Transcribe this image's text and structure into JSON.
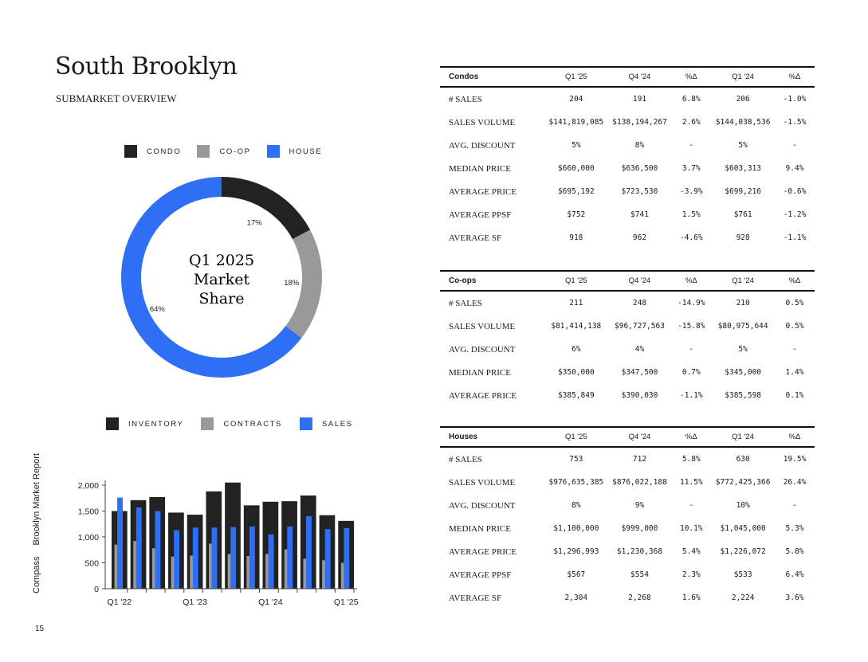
{
  "page": {
    "title": "South Brooklyn",
    "subtitle": "SUBMARKET OVERVIEW",
    "vertical_brand": "Compass",
    "vertical_report": "Brooklyn Market Report",
    "page_number": "15"
  },
  "colors": {
    "condo": "#222222",
    "coop": "#999999",
    "house": "#2f6ff5"
  },
  "donut": {
    "legend": [
      "CONDO",
      "CO-OP",
      "HOUSE"
    ],
    "center_lines": [
      "Q1 2025",
      "Market",
      "Share"
    ]
  },
  "bars": {
    "legend": [
      "INVENTORY",
      "CONTRACTS",
      "SALES"
    ]
  },
  "chart_data": [
    {
      "type": "pie",
      "variant": "donut",
      "labels": [
        "CONDO",
        "CO-OP",
        "HOUSE"
      ],
      "values": [
        17,
        18,
        64
      ],
      "value_labels": [
        "17%",
        "18%",
        "64%"
      ],
      "center_text": "Q1 2025 Market Share"
    },
    {
      "type": "bar",
      "categories": [
        "Q1 '22",
        "Q2 '22",
        "Q3 '22",
        "Q4 '22",
        "Q1 '23",
        "Q2 '23",
        "Q3 '23",
        "Q4 '23",
        "Q1 '24",
        "Q2 '24",
        "Q3 '24",
        "Q4 '24",
        "Q1 '25"
      ],
      "tick_labels": [
        "Q1 '22",
        "Q1 '23",
        "Q1 '24",
        "Q1 '25"
      ],
      "series": [
        {
          "name": "INVENTORY",
          "values": [
            1500,
            1710,
            1770,
            1470,
            1430,
            1880,
            2050,
            1610,
            1680,
            1690,
            1800,
            1420,
            1310
          ]
        },
        {
          "name": "CONTRACTS",
          "values": [
            850,
            920,
            780,
            620,
            640,
            870,
            670,
            630,
            670,
            760,
            580,
            550,
            500
          ]
        },
        {
          "name": "SALES",
          "values": [
            1760,
            1570,
            1500,
            1130,
            1180,
            1180,
            1190,
            1200,
            1050,
            1200,
            1400,
            1150,
            1170
          ]
        }
      ],
      "yticks": [
        "0",
        "500",
        "1,000",
        "1,500",
        "2,000"
      ],
      "ylim": [
        0,
        2200
      ],
      "legend_position": "top",
      "grid": false
    }
  ],
  "tables": [
    {
      "title": "Condos",
      "columns": [
        "Q1 '25",
        "Q4 '24",
        "%Δ",
        "Q1 '24",
        "%Δ"
      ],
      "rows": [
        {
          "label": "# SALES",
          "cells": [
            "204",
            "191",
            "6.8%",
            "206",
            "-1.0%"
          ]
        },
        {
          "label": "SALES VOLUME",
          "cells": [
            "$141,819,085",
            "$138,194,267",
            "2.6%",
            "$144,038,536",
            "-1.5%"
          ]
        },
        {
          "label": "AVG. DISCOUNT",
          "cells": [
            "5%",
            "8%",
            "-",
            "5%",
            "-"
          ]
        },
        {
          "label": "MEDIAN PRICE",
          "cells": [
            "$660,000",
            "$636,500",
            "3.7%",
            "$603,313",
            "9.4%"
          ]
        },
        {
          "label": "AVERAGE PRICE",
          "cells": [
            "$695,192",
            "$723,530",
            "-3.9%",
            "$699,216",
            "-0.6%"
          ]
        },
        {
          "label": "AVERAGE PPSF",
          "cells": [
            "$752",
            "$741",
            "1.5%",
            "$761",
            "-1.2%"
          ]
        },
        {
          "label": "AVERAGE SF",
          "cells": [
            "918",
            "962",
            "-4.6%",
            "928",
            "-1.1%"
          ]
        }
      ]
    },
    {
      "title": "Co-ops",
      "columns": [
        "Q1 '25",
        "Q4 '24",
        "%Δ",
        "Q1 '24",
        "%Δ"
      ],
      "rows": [
        {
          "label": "# SALES",
          "cells": [
            "211",
            "248",
            "-14.9%",
            "210",
            "0.5%"
          ]
        },
        {
          "label": "SALES VOLUME",
          "cells": [
            "$81,414,138",
            "$96,727,563",
            "-15.8%",
            "$80,975,644",
            "0.5%"
          ]
        },
        {
          "label": "AVG. DISCOUNT",
          "cells": [
            "6%",
            "4%",
            "-",
            "5%",
            "-"
          ]
        },
        {
          "label": "MEDIAN PRICE",
          "cells": [
            "$350,000",
            "$347,500",
            "0.7%",
            "$345,000",
            "1.4%"
          ]
        },
        {
          "label": "AVERAGE PRICE",
          "cells": [
            "$385,849",
            "$390,030",
            "-1.1%",
            "$385,598",
            "0.1%"
          ]
        }
      ]
    },
    {
      "title": "Houses",
      "columns": [
        "Q1 '25",
        "Q4 '24",
        "%Δ",
        "Q1 '24",
        "%Δ"
      ],
      "rows": [
        {
          "label": "# SALES",
          "cells": [
            "753",
            "712",
            "5.8%",
            "630",
            "19.5%"
          ]
        },
        {
          "label": "SALES VOLUME",
          "cells": [
            "$976,635,385",
            "$876,022,188",
            "11.5%",
            "$772,425,366",
            "26.4%"
          ]
        },
        {
          "label": "AVG. DISCOUNT",
          "cells": [
            "8%",
            "9%",
            "-",
            "10%",
            "-"
          ]
        },
        {
          "label": "MEDIAN PRICE",
          "cells": [
            "$1,100,000",
            "$999,000",
            "10.1%",
            "$1,045,000",
            "5.3%"
          ]
        },
        {
          "label": "AVERAGE PRICE",
          "cells": [
            "$1,296,993",
            "$1,230,368",
            "5.4%",
            "$1,226,072",
            "5.8%"
          ]
        },
        {
          "label": "AVERAGE PPSF",
          "cells": [
            "$567",
            "$554",
            "2.3%",
            "$533",
            "6.4%"
          ]
        },
        {
          "label": "AVERAGE SF",
          "cells": [
            "2,304",
            "2,268",
            "1.6%",
            "2,224",
            "3.6%"
          ]
        }
      ]
    }
  ]
}
